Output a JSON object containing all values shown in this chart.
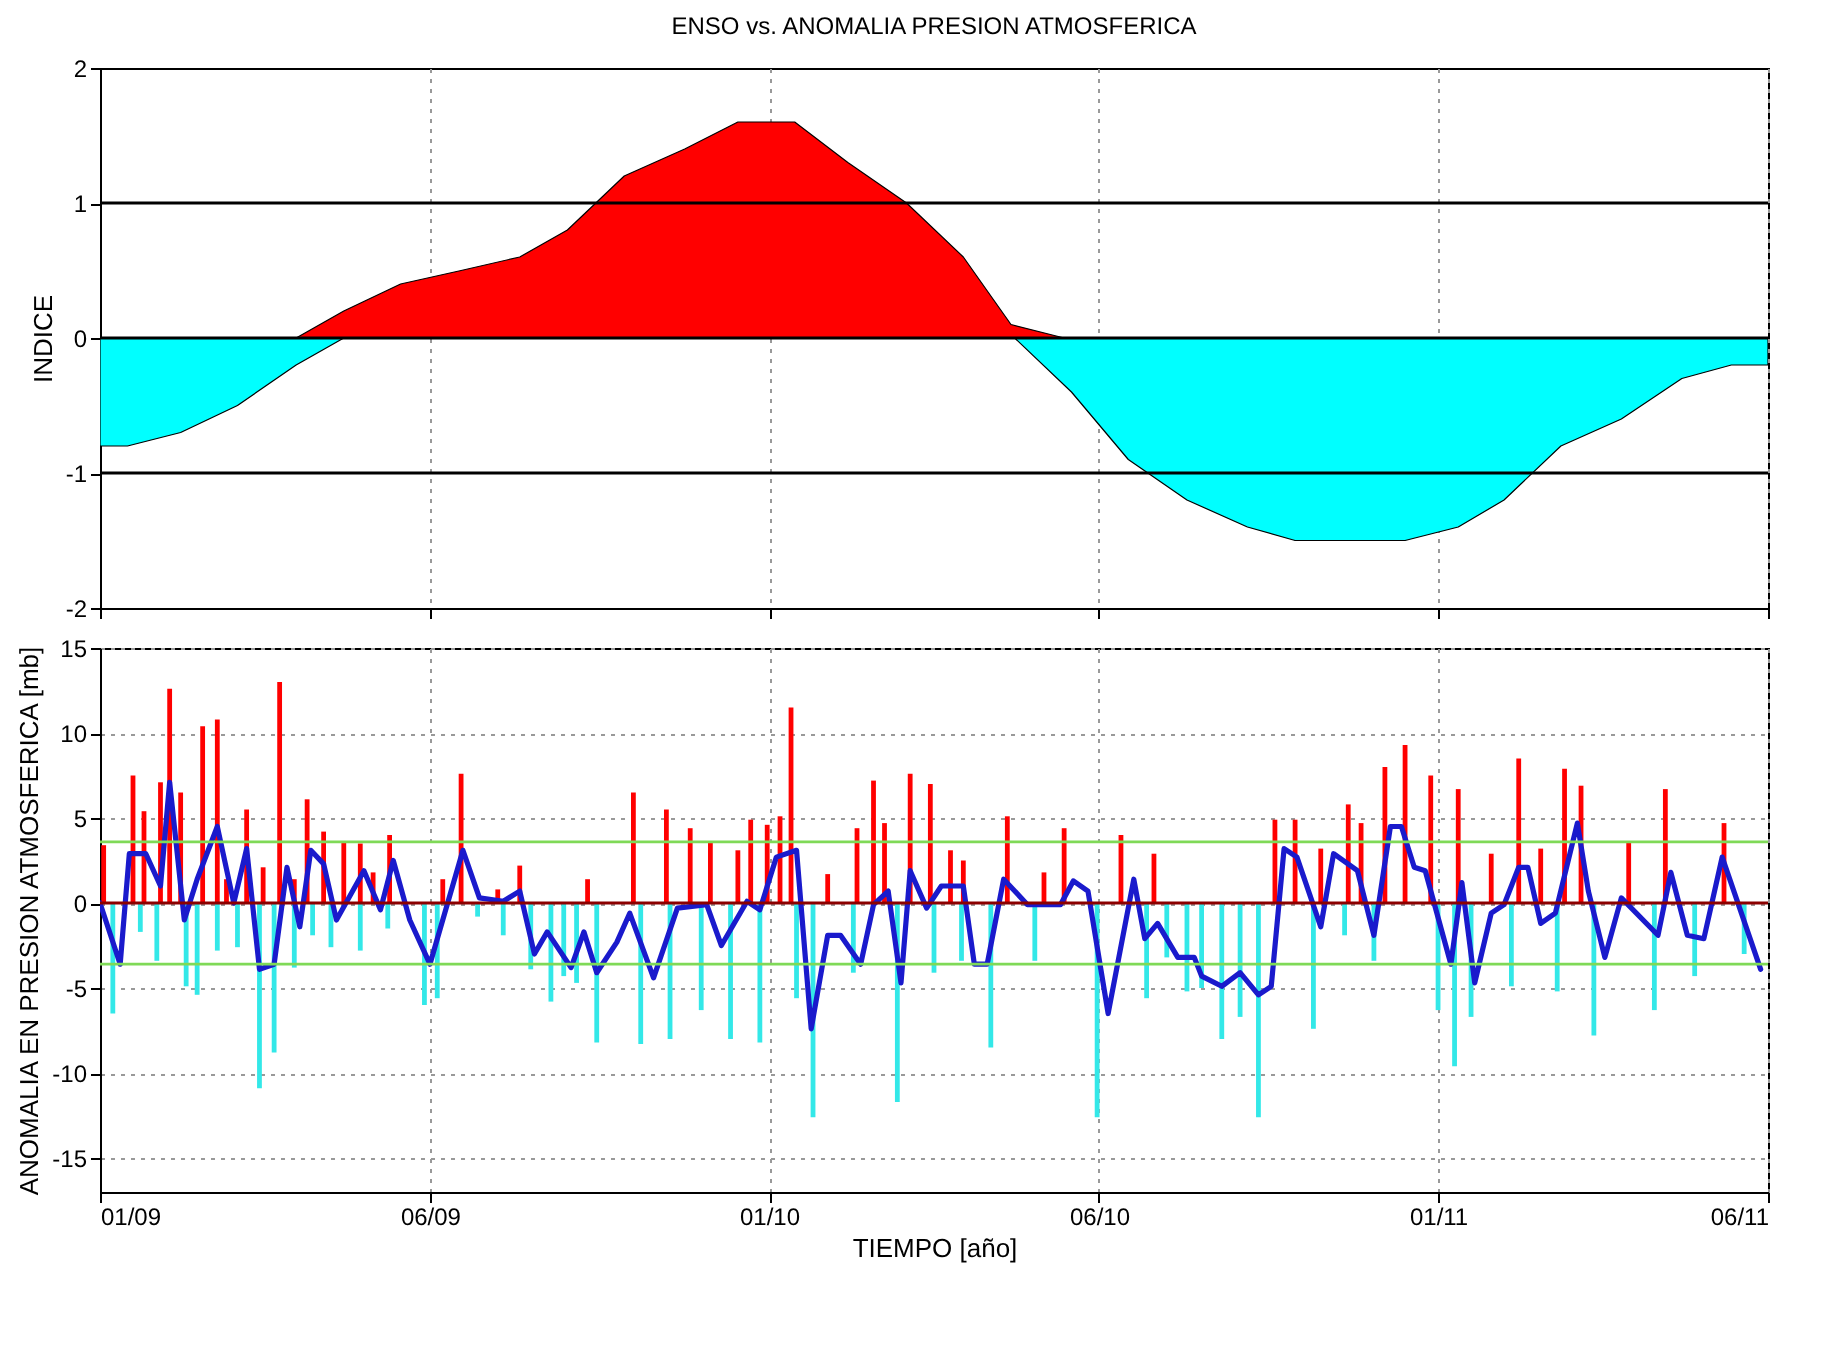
{
  "chart_data": [
    {
      "type": "area",
      "title": "ENSO vs. ANOMALIA PRESION ATMOSFERICA",
      "ylabel": "INDICE",
      "series": [
        {
          "color": "#ff0000",
          "x": [
            "2009-04-18",
            "2009-05-14",
            "2009-06-14",
            "2009-07-17",
            "2009-08-18",
            "2009-09-13",
            "2009-10-14",
            "2009-11-16",
            "2009-12-15",
            "2010-01-15",
            "2010-02-13",
            "2010-03-17",
            "2010-04-17",
            "2010-05-13",
            "2010-06-11"
          ],
          "values": [
            0,
            0.2,
            0.4,
            0.5,
            0.6,
            0.8,
            1.2,
            1.4,
            1.6,
            1.6,
            1.3,
            1.0,
            0.6,
            0.1,
            0
          ]
        },
        {
          "color": "#00ffff",
          "x": [
            "2009-01-01",
            "2009-01-16",
            "2009-02-14",
            "2009-03-17",
            "2009-04-18",
            "2009-05-14"
          ],
          "values": [
            -0.8,
            -0.8,
            -0.7,
            -0.5,
            -0.2,
            0
          ]
        },
        {
          "color": "#00ffff",
          "x": [
            "2010-05-15",
            "2010-06-15",
            "2010-07-16",
            "2010-08-17",
            "2010-09-19",
            "2010-10-15",
            "2010-12-14",
            "2011-01-12",
            "2011-02-06",
            "2011-03-09",
            "2011-04-11",
            "2011-05-14",
            "2011-06-10",
            "2011-06-30"
          ],
          "values": [
            0,
            -0.4,
            -0.9,
            -1.2,
            -1.4,
            -1.5,
            -1.5,
            -1.4,
            -1.2,
            -0.8,
            -0.6,
            -0.3,
            -0.2,
            -0.2
          ]
        }
      ],
      "xlim": [
        "2009-01-01",
        "2011-06-30"
      ],
      "xticks": [
        "2009-01-01",
        "2009-06-30",
        "2010-01-01",
        "2010-06-30",
        "2011-01-01",
        "2011-06-30"
      ],
      "ylim": [
        -2,
        2
      ],
      "yticks": [
        -2,
        -1,
        0,
        1,
        2
      ],
      "ref_lines": [
        {
          "axis": "y",
          "value": 1,
          "color": "#000000"
        },
        {
          "axis": "y",
          "value": 0,
          "color": "#000000"
        },
        {
          "axis": "y",
          "value": -1,
          "color": "#000000"
        }
      ],
      "grid": "x",
      "tick_labels": "y"
    },
    {
      "type": "bar",
      "xlabel": "TIEMPO [año]",
      "ylabel": "ANOMALIA EN PRESION ATMOSFERICA [mb]",
      "series": [
        {
          "color": "#ff0000",
          "x": [
            "2009-01-03",
            "2009-01-19",
            "2009-01-25",
            "2009-02-03",
            "2009-02-08",
            "2009-02-14",
            "2009-02-26",
            "2009-03-06",
            "2009-03-11",
            "2009-03-22",
            "2009-03-31",
            "2009-04-09",
            "2009-04-17",
            "2009-04-24",
            "2009-05-03",
            "2009-05-14",
            "2009-05-23",
            "2009-05-30",
            "2009-06-08",
            "2009-07-07",
            "2009-07-17",
            "2009-08-06",
            "2009-08-18",
            "2009-09-24",
            "2009-10-19",
            "2009-11-06",
            "2009-11-19",
            "2009-11-30",
            "2009-12-15",
            "2009-12-22",
            "2009-12-31",
            "2010-01-07",
            "2010-01-13",
            "2010-02-02",
            "2010-02-18",
            "2010-02-27",
            "2010-03-05",
            "2010-03-19",
            "2010-03-30",
            "2010-04-10",
            "2010-04-17",
            "2010-05-11",
            "2010-05-31",
            "2010-06-11",
            "2010-07-12",
            "2010-07-30",
            "2010-10-04",
            "2010-10-15",
            "2010-10-29",
            "2010-11-13",
            "2010-11-20",
            "2010-12-03",
            "2010-12-14",
            "2010-12-28",
            "2011-01-12",
            "2011-01-30",
            "2011-02-14",
            "2011-02-26",
            "2011-03-11",
            "2011-03-20",
            "2011-04-15",
            "2011-05-05",
            "2011-06-06"
          ],
          "values": [
            3.4,
            7.5,
            5.4,
            7.1,
            12.6,
            6.5,
            10.4,
            10.8,
            1.4,
            5.5,
            2.1,
            13.0,
            1.4,
            6.1,
            4.2,
            3.6,
            3.5,
            1.8,
            4.0,
            1.4,
            7.6,
            0.8,
            2.2,
            1.4,
            6.5,
            5.5,
            4.4,
            3.6,
            3.1,
            4.9,
            4.6,
            5.1,
            11.5,
            1.7,
            4.4,
            7.2,
            4.7,
            7.6,
            7.0,
            3.1,
            2.5,
            5.1,
            1.8,
            4.4,
            4.0,
            2.9,
            4.9,
            4.9,
            3.2,
            5.8,
            4.7,
            8.0,
            9.3,
            7.5,
            6.7,
            2.9,
            8.5,
            3.2,
            7.9,
            6.9,
            3.6,
            6.7,
            4.7
          ]
        },
        {
          "color": "#33e8e8",
          "x": [
            "2009-01-08",
            "2009-01-23",
            "2009-02-01",
            "2009-02-17",
            "2009-02-23",
            "2009-03-06",
            "2009-03-17",
            "2009-03-29",
            "2009-04-06",
            "2009-04-17",
            "2009-04-27",
            "2009-05-07",
            "2009-05-23",
            "2009-06-07",
            "2009-06-27",
            "2009-07-04",
            "2009-07-26",
            "2009-08-09",
            "2009-08-24",
            "2009-09-04",
            "2009-09-11",
            "2009-09-18",
            "2009-09-29",
            "2009-10-23",
            "2009-11-08",
            "2009-11-25",
            "2009-12-11",
            "2009-12-27",
            "2010-01-16",
            "2010-01-25",
            "2010-02-16",
            "2010-03-12",
            "2010-04-01",
            "2010-04-16",
            "2010-05-02",
            "2010-05-26",
            "2010-06-29",
            "2010-07-26",
            "2010-08-06",
            "2010-08-17",
            "2010-08-25",
            "2010-09-05",
            "2010-09-15",
            "2010-09-25",
            "2010-10-25",
            "2010-11-11",
            "2010-11-27",
            "2011-01-01",
            "2011-01-10",
            "2011-01-19",
            "2011-02-10",
            "2011-03-07",
            "2011-03-27",
            "2011-04-29",
            "2011-05-21",
            "2011-06-17"
          ],
          "values": [
            -6.5,
            -1.7,
            -3.4,
            -4.9,
            -5.4,
            -2.8,
            -2.6,
            -10.9,
            -8.8,
            -3.8,
            -1.9,
            -2.6,
            -2.8,
            -1.5,
            -6.0,
            -5.6,
            -0.8,
            -1.9,
            -3.9,
            -5.8,
            -4.3,
            -4.7,
            -8.2,
            -8.3,
            -8.0,
            -6.3,
            -8.0,
            -8.2,
            -5.6,
            -12.6,
            -4.1,
            -11.7,
            -4.1,
            -3.4,
            -8.5,
            -3.4,
            -12.6,
            -5.6,
            -3.2,
            -5.2,
            -5.0,
            -8.0,
            -6.7,
            -12.6,
            -7.4,
            -1.9,
            -3.4,
            -6.3,
            -9.6,
            -6.7,
            -4.9,
            -5.2,
            -7.8,
            -6.3,
            -4.3,
            -3.0
          ]
        },
        {
          "type": "line",
          "color": "#1a1acc",
          "x": [
            "2009-01-01",
            "2009-01-12",
            "2009-01-17",
            "2009-01-26",
            "2009-02-03",
            "2009-02-08",
            "2009-02-16",
            "2009-02-23",
            "2009-03-06",
            "2009-03-15",
            "2009-03-22",
            "2009-03-29",
            "2009-04-06",
            "2009-04-13",
            "2009-04-20",
            "2009-04-26",
            "2009-05-03",
            "2009-05-10",
            "2009-05-25",
            "2009-06-03",
            "2009-06-10",
            "2009-06-19",
            "2009-06-30",
            "2009-07-18",
            "2009-07-27",
            "2009-08-09",
            "2009-08-18",
            "2009-08-26",
            "2009-09-02",
            "2009-09-15",
            "2009-09-22",
            "2009-09-29",
            "2009-10-10",
            "2009-10-17",
            "2009-10-30",
            "2009-11-12",
            "2009-11-28",
            "2009-12-06",
            "2009-12-20",
            "2009-12-27",
            "2010-01-05",
            "2010-01-16",
            "2010-01-24",
            "2010-02-02",
            "2010-02-09",
            "2010-02-20",
            "2010-02-27",
            "2010-03-07",
            "2010-03-14",
            "2010-03-19",
            "2010-03-28",
            "2010-04-05",
            "2010-04-17",
            "2010-04-23",
            "2010-04-30",
            "2010-05-09",
            "2010-05-22",
            "2010-06-09",
            "2010-06-16",
            "2010-06-24",
            "2010-07-05",
            "2010-07-19",
            "2010-07-25",
            "2010-08-01",
            "2010-08-12",
            "2010-08-21",
            "2010-08-25",
            "2010-09-05",
            "2010-09-15",
            "2010-09-25",
            "2010-10-02",
            "2010-10-09",
            "2010-10-16",
            "2010-10-29",
            "2010-11-05",
            "2010-11-18",
            "2010-11-27",
            "2010-12-06",
            "2010-12-12",
            "2010-12-19",
            "2010-12-25",
            "2011-01-08",
            "2011-01-14",
            "2011-01-21",
            "2011-01-30",
            "2011-02-06",
            "2011-02-14",
            "2011-02-19",
            "2011-02-26",
            "2011-03-06",
            "2011-03-18",
            "2011-03-24",
            "2011-04-02",
            "2011-04-11",
            "2011-05-01",
            "2011-05-08",
            "2011-05-17",
            "2011-05-26",
            "2011-06-05",
            "2011-06-26"
          ],
          "values": [
            0,
            -3.6,
            2.9,
            2.9,
            1.0,
            7.1,
            -1.0,
            1.4,
            4.5,
            0,
            3.2,
            -3.9,
            -3.6,
            2.1,
            -1.4,
            3.1,
            2.3,
            -1.0,
            1.9,
            -0.4,
            2.5,
            -1.0,
            -3.6,
            3.1,
            0.3,
            0.1,
            0.7,
            -3.0,
            -1.7,
            -3.8,
            -1.7,
            -4.1,
            -2.3,
            -0.6,
            -4.4,
            -0.3,
            -0.1,
            -2.5,
            0.1,
            -0.4,
            2.7,
            3.1,
            -7.4,
            -1.9,
            -1.9,
            -3.6,
            -0.1,
            0.7,
            -4.7,
            1.9,
            -0.3,
            1.0,
            1.0,
            -3.6,
            -3.6,
            1.4,
            -0.1,
            -0.1,
            1.3,
            0.7,
            -6.5,
            1.4,
            -2.1,
            -1.2,
            -3.2,
            -3.2,
            -4.3,
            -4.9,
            -4.1,
            -5.4,
            -4.9,
            3.2,
            2.7,
            -1.4,
            2.9,
            1.9,
            -1.9,
            4.5,
            4.5,
            2.1,
            1.9,
            -3.6,
            1.2,
            -4.7,
            -0.6,
            -0.1,
            2.1,
            2.1,
            -1.2,
            -0.6,
            4.7,
            0.7,
            -3.2,
            0.3,
            -1.9,
            1.8,
            -1.9,
            -2.1,
            2.7,
            -3.9
          ]
        }
      ],
      "xlim": [
        "2009-01-01",
        "2011-06-30"
      ],
      "xticks": [
        {
          "value": "2009-01-01",
          "label": "01/09"
        },
        {
          "value": "2009-06-30",
          "label": "06/09"
        },
        {
          "value": "2010-01-01",
          "label": "01/10"
        },
        {
          "value": "2010-06-30",
          "label": "06/10"
        },
        {
          "value": "2011-01-01",
          "label": "01/11"
        },
        {
          "value": "2011-06-30",
          "label": "06/11"
        }
      ],
      "ylim": [
        -17,
        15
      ],
      "yticks": [
        -15,
        -10,
        -5,
        0,
        5,
        10,
        15
      ],
      "ref_lines": [
        {
          "axis": "y",
          "value": 3.6,
          "color": "#7fd957"
        },
        {
          "axis": "y",
          "value": -3.6,
          "color": "#7fd957"
        },
        {
          "axis": "y",
          "value": 0,
          "color": "#8b0000"
        }
      ],
      "grid": true
    }
  ]
}
